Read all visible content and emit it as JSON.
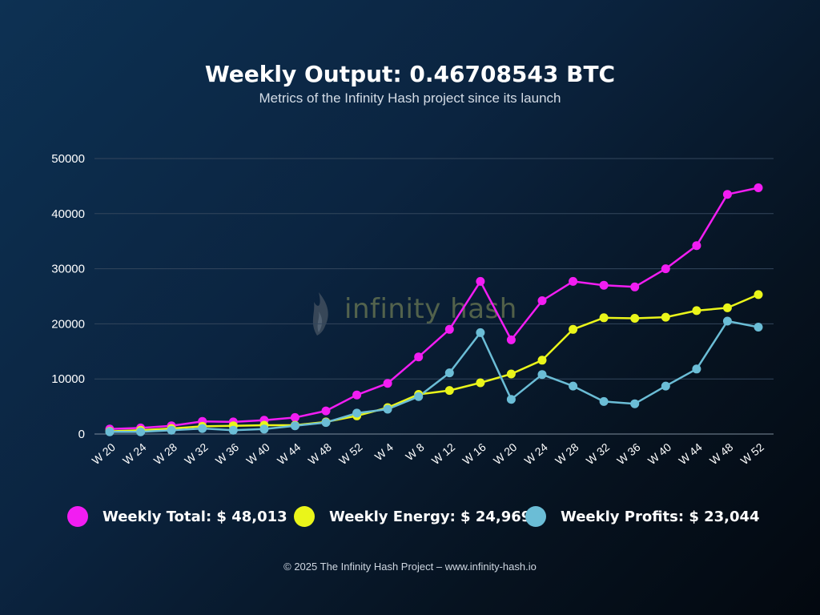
{
  "header": {
    "title": "Weekly Output: 0.46708543 BTC",
    "subtitle": "Metrics of the Infinity Hash project since its launch"
  },
  "watermark": {
    "text": "infinity hash",
    "icon": "flame-logo-icon"
  },
  "legend": [
    {
      "label": "Weekly Total: $ 48,013",
      "color": "#f21df2"
    },
    {
      "label": "Weekly Energy: $ 24,969",
      "color": "#eaf51a"
    },
    {
      "label": "Weekly Profits: $ 23,044",
      "color": "#6bbdd6"
    }
  ],
  "footer": {
    "text": "© 2025 The Infinity Hash Project – www.infinity-hash.io"
  },
  "chart_data": {
    "type": "line",
    "categories": [
      "W 20",
      "W 24",
      "W 28",
      "W 32",
      "W 36",
      "W 40",
      "W 44",
      "W 48",
      "W 52",
      "W 4",
      "W 8",
      "W 12",
      "W 16",
      "W 20",
      "W 24",
      "W 28",
      "W 32",
      "W 36",
      "W 40",
      "W 44",
      "W 48",
      "W 52"
    ],
    "ylim": [
      0,
      50000
    ],
    "yticks": [
      0,
      10000,
      20000,
      30000,
      40000,
      50000
    ],
    "grid": true,
    "legend_position": "bottom",
    "series": [
      {
        "color": "#f21df2",
        "values": [
          900,
          1100,
          1500,
          2300,
          2200,
          2500,
          3000,
          4200,
          7100,
          9200,
          14000,
          19000,
          27700,
          17100,
          24200,
          27700,
          27000,
          26700,
          30000,
          34200,
          43500,
          44700
        ]
      },
      {
        "color": "#eaf51a",
        "values": [
          500,
          700,
          1000,
          1400,
          1500,
          1600,
          1600,
          2200,
          3300,
          4800,
          7200,
          7900,
          9300,
          10900,
          13400,
          19000,
          21100,
          21000,
          21200,
          22400,
          22900,
          25300
        ]
      },
      {
        "color": "#6bbdd6",
        "values": [
          400,
          400,
          700,
          1000,
          700,
          900,
          1500,
          2100,
          3800,
          4500,
          6800,
          11100,
          18400,
          6300,
          10800,
          8700,
          5900,
          5500,
          8700,
          11800,
          20500,
          19400
        ]
      }
    ]
  }
}
